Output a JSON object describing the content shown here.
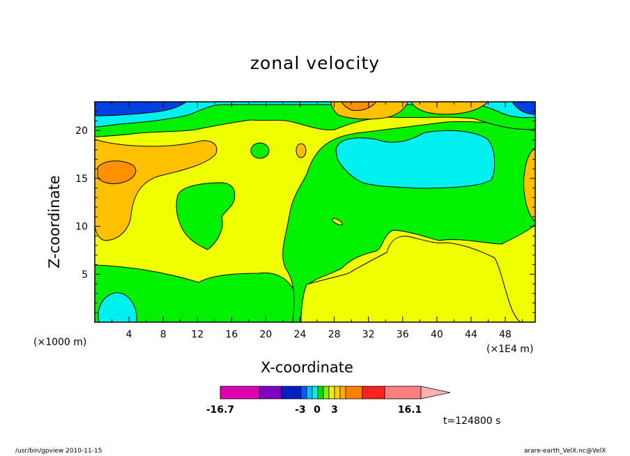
{
  "chart_data": {
    "type": "contour",
    "title": "zonal velocity",
    "xlabel": "X-coordinate",
    "ylabel": "Z-coordinate",
    "x_unit_left": "(×1000 m)",
    "x_unit_right": "(×1E4 m)",
    "x_ticks": [
      "4",
      "8",
      "12",
      "16",
      "20",
      "24",
      "28",
      "32",
      "36",
      "40",
      "44",
      "48"
    ],
    "y_ticks": [
      "5",
      "10",
      "15",
      "20"
    ],
    "xlim": [
      0,
      51.5
    ],
    "ylim": [
      0,
      23
    ],
    "time_label": "t=124800 s",
    "colorbar": {
      "labels": [
        "-16.7",
        "-3",
        "0",
        "3",
        "16.1"
      ],
      "colors": [
        "#e000b0",
        "#8000c0",
        "#0020c0",
        "#0060ff",
        "#00c0ff",
        "#00f0f0",
        "#00e000",
        "#80f000",
        "#f0f000",
        "#ffd000",
        "#ffb000",
        "#ff8000",
        "#ff2020",
        "#ff8080",
        "#ffb0b0"
      ]
    },
    "palette": {
      "blue": "#0040e0",
      "cyan": "#00f0f0",
      "green": "#00f000",
      "yellow": "#f0ff00",
      "gold": "#ffc000",
      "orange": "#ff9000"
    }
  },
  "footer": {
    "left": "/usr/bin/gpview   2010-11-15",
    "right": "arare-earth_VelX.nc@VelX"
  }
}
